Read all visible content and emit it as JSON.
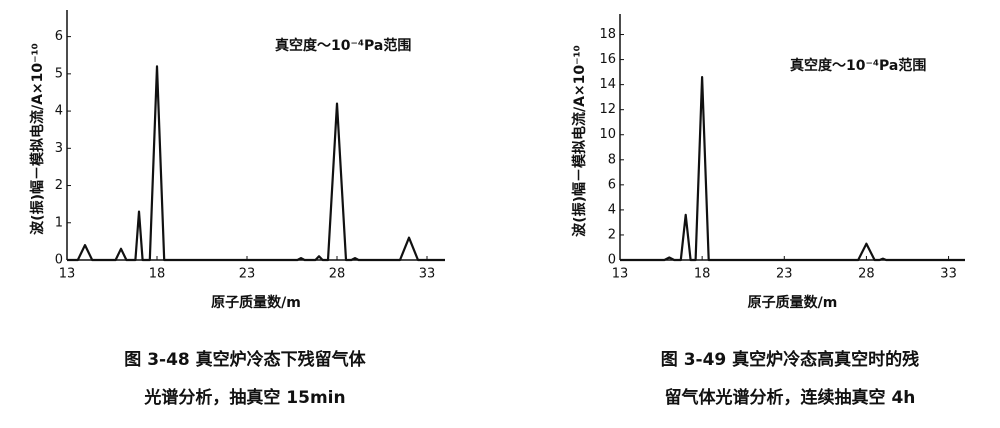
{
  "chart_data": [
    {
      "type": "line",
      "y_label": "波(振)幅－模拟电流/A×10⁻¹⁰",
      "x_label": "原子质量数/m",
      "annotation": "真空度～10⁻⁴Pa范围",
      "caption": [
        "图 3-48   真空炉冷态下残留气体",
        "光谱分析，抽真空 15min"
      ],
      "color": "#111111",
      "x": [
        13,
        13.6,
        14,
        14.4,
        15.7,
        16,
        16.3,
        16.8,
        17,
        17.2,
        17.6,
        18,
        18.4,
        25.8,
        26,
        26.2,
        26.8,
        27,
        27.2,
        27.5,
        28,
        28.5,
        28.8,
        29,
        29.2,
        31.5,
        32,
        32.5,
        34
      ],
      "values": [
        0,
        0,
        0.4,
        0,
        0,
        0.3,
        0,
        0,
        1.3,
        0,
        0,
        5.2,
        0,
        0,
        0.05,
        0,
        0,
        0.1,
        0,
        0,
        4.2,
        0,
        0,
        0.05,
        0,
        0,
        0.6,
        0,
        0
      ],
      "xlim": [
        13,
        34
      ],
      "xticks": [
        13,
        18,
        23,
        28,
        33
      ],
      "ylim": [
        0,
        6.5
      ],
      "yticks": [
        0,
        1,
        2,
        3,
        4,
        5,
        6
      ]
    },
    {
      "type": "line",
      "y_label": "波(振)幅－模拟电流/A×10⁻¹⁰",
      "x_label": "原子质量数/m",
      "annotation": "真空度～10⁻⁴Pa范围",
      "caption": [
        "图 3-49   真空炉冷态高真空时的残",
        "留气体光谱分析，连续抽真空 4h"
      ],
      "color": "#111111",
      "x": [
        13,
        15.7,
        16,
        16.3,
        16.7,
        17,
        17.3,
        17.6,
        18,
        18.4,
        27.5,
        28,
        28.5,
        28.8,
        29,
        29.2,
        34
      ],
      "values": [
        0,
        0,
        0.2,
        0,
        0,
        3.6,
        0,
        0,
        14.6,
        0,
        0,
        1.3,
        0,
        0,
        0.1,
        0,
        0
      ],
      "xlim": [
        13,
        34
      ],
      "xticks": [
        13,
        18,
        23,
        28,
        33
      ],
      "ylim": [
        0,
        19
      ],
      "yticks": [
        0,
        2,
        4,
        6,
        8,
        10,
        12,
        14,
        16,
        18
      ]
    }
  ]
}
